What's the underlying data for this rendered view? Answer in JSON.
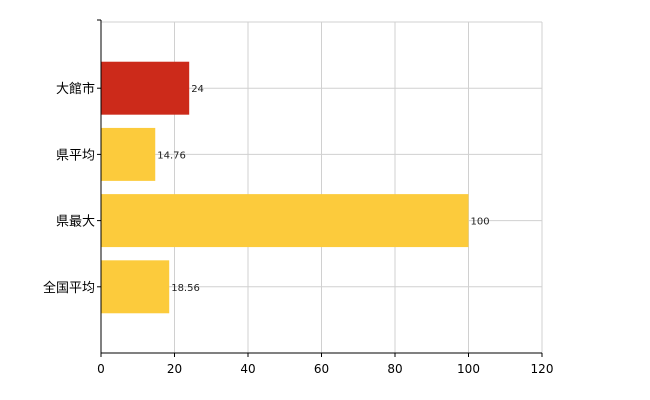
{
  "chart_data": {
    "type": "bar",
    "orientation": "horizontal",
    "categories": [
      "大館市",
      "県平均",
      "県最大",
      "全国平均"
    ],
    "values": [
      24,
      14.76,
      100,
      18.56
    ],
    "value_labels": [
      "24",
      "14.76",
      "100",
      "18.56"
    ],
    "bar_colors": [
      "#cc2a1a",
      "#fccb3c",
      "#fccb3c",
      "#fccb3c"
    ],
    "title": "",
    "xlabel": "",
    "ylabel": "",
    "xlim": [
      0,
      120
    ],
    "xticks": [
      0,
      20,
      40,
      60,
      80,
      100,
      120
    ],
    "xtick_labels": [
      "0",
      "20",
      "40",
      "60",
      "80",
      "100",
      "120"
    ],
    "grid": true,
    "grid_color": "#d0d0d0",
    "axis_color": "#000000"
  }
}
